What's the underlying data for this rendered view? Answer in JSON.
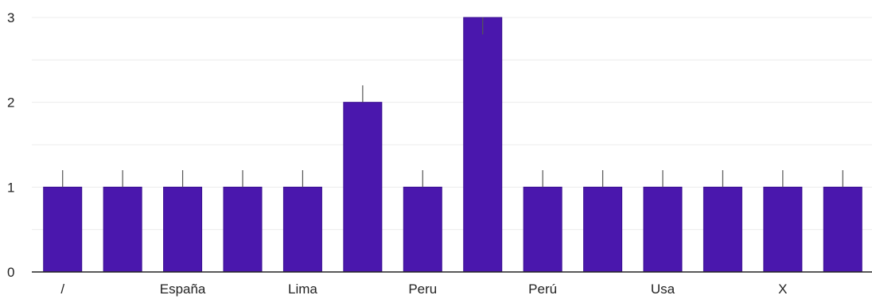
{
  "chart_data": {
    "type": "bar",
    "title": "",
    "xlabel": "",
    "ylabel": "",
    "categories": [
      "/",
      "",
      "España",
      "",
      "Lima",
      "",
      "Peru",
      "",
      "Perú",
      "",
      "Usa",
      "",
      "X",
      ""
    ],
    "values": [
      1,
      1,
      1,
      1,
      1,
      2,
      1,
      3,
      1,
      1,
      1,
      1,
      1,
      1
    ],
    "error_bar_top": [
      1.2,
      1.2,
      1.2,
      1.2,
      1.2,
      2.2,
      1.2,
      2.8,
      1.2,
      1.2,
      1.2,
      1.2,
      1.2,
      1.2
    ],
    "ylim": [
      0,
      3
    ],
    "y_ticks": [
      0,
      1,
      2,
      3
    ],
    "y_tick_labels": [
      "0",
      "1",
      "2",
      "3"
    ],
    "grid": true,
    "legend": "none",
    "colors": {
      "bar": "#4a17ad",
      "bar_stroke": "#3a0f90",
      "error_bar": "#555555",
      "grid": "#ececec",
      "axis": "#222222",
      "text": "#222222"
    }
  }
}
